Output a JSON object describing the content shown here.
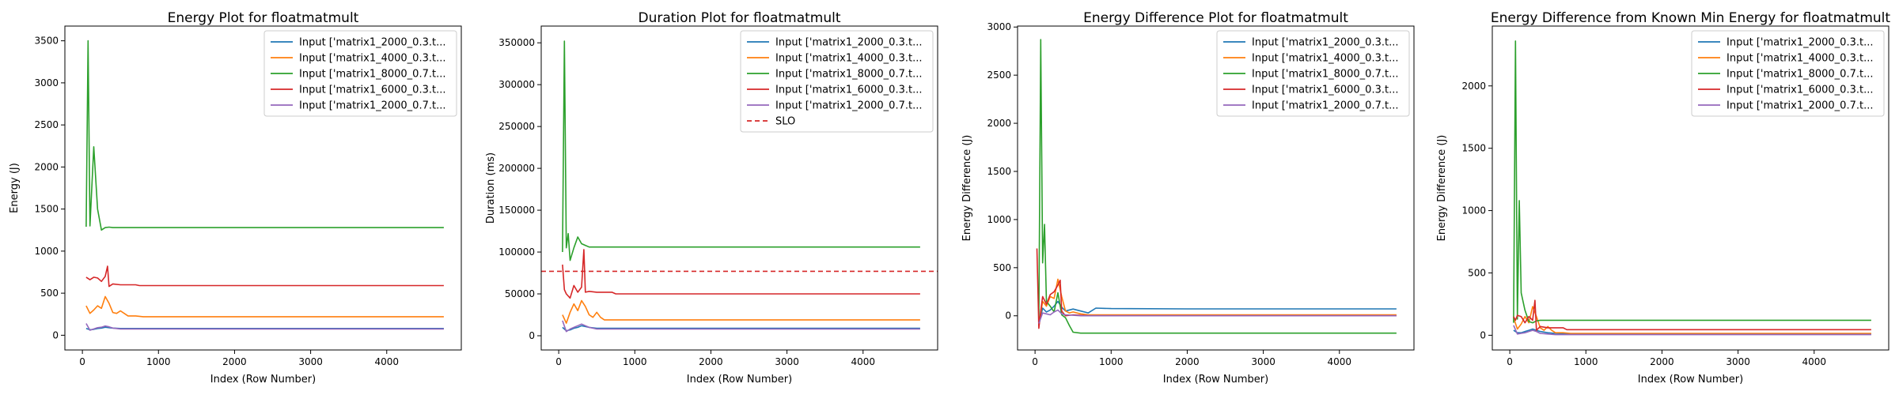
{
  "chart_data": [
    {
      "type": "line",
      "title": "Energy Plot for floatmatmult",
      "xlabel": "Index (Row Number)",
      "ylabel": "Energy (J)",
      "xlim": [
        -230,
        4980
      ],
      "ylim": [
        -175,
        3675
      ],
      "xticks": [
        0,
        1000,
        2000,
        3000,
        4000
      ],
      "xtick_labels": [
        "0",
        "1000",
        "2000",
        "3000",
        "4000"
      ],
      "yticks": [
        0,
        500,
        1000,
        1500,
        2000,
        2500,
        3000,
        3500
      ],
      "ytick_labels": [
        "0",
        "500",
        "1000",
        "1500",
        "2000",
        "2500",
        "3000",
        "3500"
      ],
      "grid": false,
      "legend": "top-right",
      "series": [
        {
          "name": "Input ['matrix1_2000_0.3.t...",
          "color": "#1f77b4",
          "x": [
            50,
            100,
            150,
            200,
            250,
            300,
            350,
            400,
            500,
            600,
            800,
            1000,
            2000,
            3000,
            4000,
            4750
          ],
          "y": [
            80,
            65,
            70,
            80,
            85,
            95,
            90,
            85,
            80,
            80,
            80,
            80,
            80,
            80,
            80,
            80
          ]
        },
        {
          "name": "Input ['matrix1_4000_0.3.t...",
          "color": "#ff7f0e",
          "x": [
            50,
            100,
            150,
            200,
            250,
            300,
            350,
            400,
            450,
            500,
            550,
            600,
            700,
            800,
            1000,
            2000,
            3000,
            4000,
            4750
          ],
          "y": [
            350,
            260,
            300,
            350,
            320,
            460,
            380,
            270,
            260,
            290,
            260,
            230,
            230,
            220,
            220,
            220,
            220,
            220,
            220
          ]
        },
        {
          "name": "Input ['matrix1_8000_0.7.t...",
          "color": "#2ca02c",
          "x": [
            50,
            75,
            100,
            150,
            200,
            250,
            300,
            350,
            400,
            500,
            700,
            1000,
            2000,
            3000,
            4000,
            4750
          ],
          "y": [
            1290,
            3500,
            1300,
            2240,
            1500,
            1250,
            1280,
            1285,
            1280,
            1280,
            1280,
            1280,
            1280,
            1280,
            1280,
            1280
          ]
        },
        {
          "name": "Input ['matrix1_6000_0.3.t...",
          "color": "#d62728",
          "x": [
            50,
            100,
            150,
            200,
            250,
            300,
            330,
            350,
            400,
            500,
            700,
            750,
            1000,
            2000,
            3000,
            4000,
            4750
          ],
          "y": [
            690,
            660,
            690,
            680,
            640,
            700,
            820,
            580,
            610,
            600,
            600,
            590,
            590,
            590,
            590,
            590,
            590
          ]
        },
        {
          "name": "Input ['matrix1_2000_0.7.t...",
          "color": "#9467bd",
          "x": [
            50,
            100,
            150,
            200,
            250,
            300,
            350,
            400,
            500,
            600,
            800,
            1000,
            2000,
            3000,
            4000,
            4750
          ],
          "y": [
            140,
            60,
            75,
            90,
            95,
            110,
            100,
            85,
            75,
            75,
            75,
            75,
            75,
            75,
            75,
            75
          ]
        }
      ]
    },
    {
      "type": "line",
      "title": "Duration Plot for floatmatmult",
      "xlabel": "Index (Row Number)",
      "ylabel": "Duration (ms)",
      "xlim": [
        -230,
        4980
      ],
      "ylim": [
        -17000,
        370000
      ],
      "xticks": [
        0,
        1000,
        2000,
        3000,
        4000
      ],
      "xtick_labels": [
        "0",
        "1000",
        "2000",
        "3000",
        "4000"
      ],
      "yticks": [
        0,
        50000,
        100000,
        150000,
        200000,
        250000,
        300000,
        350000
      ],
      "ytick_labels": [
        "0",
        "50000",
        "100000",
        "150000",
        "200000",
        "250000",
        "300000",
        "350000"
      ],
      "grid": false,
      "legend": "top-right",
      "series": [
        {
          "name": "Input ['matrix1_2000_0.3.t...",
          "color": "#1f77b4",
          "x": [
            50,
            100,
            150,
            200,
            250,
            300,
            350,
            400,
            500,
            600,
            800,
            1000,
            2000,
            3000,
            4000,
            4750
          ],
          "y": [
            10000,
            6000,
            7000,
            9000,
            10000,
            12000,
            11000,
            10000,
            9000,
            9000,
            9000,
            9000,
            9000,
            9000,
            9000,
            9000
          ]
        },
        {
          "name": "Input ['matrix1_4000_0.3.t...",
          "color": "#ff7f0e",
          "x": [
            50,
            100,
            150,
            200,
            250,
            300,
            350,
            400,
            450,
            500,
            550,
            600,
            700,
            800,
            1000,
            2000,
            3000,
            4000,
            4750
          ],
          "y": [
            25000,
            15000,
            28000,
            38000,
            30000,
            42000,
            35000,
            25000,
            22000,
            28000,
            22000,
            19000,
            19000,
            19000,
            19000,
            19000,
            19000,
            19000,
            19000
          ]
        },
        {
          "name": "Input ['matrix1_8000_0.7.t...",
          "color": "#2ca02c",
          "x": [
            50,
            75,
            100,
            125,
            150,
            200,
            250,
            300,
            350,
            400,
            500,
            700,
            1000,
            2000,
            3000,
            4000,
            4750
          ],
          "y": [
            100000,
            352000,
            105000,
            122000,
            90000,
            105000,
            118000,
            110000,
            108000,
            106000,
            106000,
            106000,
            106000,
            106000,
            106000,
            106000,
            106000
          ]
        },
        {
          "name": "Input ['matrix1_6000_0.3.t...",
          "color": "#d62728",
          "x": [
            50,
            75,
            100,
            150,
            200,
            250,
            300,
            330,
            350,
            400,
            500,
            700,
            750,
            1000,
            2000,
            3000,
            4000,
            4750
          ],
          "y": [
            85000,
            55000,
            50000,
            45000,
            60000,
            52000,
            58000,
            103000,
            52000,
            53000,
            52000,
            52000,
            50000,
            50000,
            50000,
            50000,
            50000,
            50000
          ]
        },
        {
          "name": "Input ['matrix1_2000_0.7.t...",
          "color": "#9467bd",
          "x": [
            50,
            100,
            150,
            200,
            250,
            300,
            350,
            400,
            500,
            600,
            800,
            1000,
            2000,
            3000,
            4000,
            4750
          ],
          "y": [
            18000,
            5000,
            8000,
            10000,
            12000,
            14000,
            12000,
            10000,
            8000,
            8000,
            8000,
            8000,
            8000,
            8000,
            8000,
            8000
          ]
        }
      ],
      "hlines": [
        {
          "name": "SLO",
          "y": 77000,
          "color": "#d62728",
          "style": "dashed"
        }
      ]
    },
    {
      "type": "line",
      "title": "Energy Difference Plot for floatmatmult",
      "xlabel": "Index (Row Number)",
      "ylabel": "Energy Difference (J)",
      "xlim": [
        -230,
        4980
      ],
      "ylim": [
        -355,
        3010
      ],
      "xticks": [
        0,
        1000,
        2000,
        3000,
        4000
      ],
      "xtick_labels": [
        "0",
        "1000",
        "2000",
        "3000",
        "4000"
      ],
      "yticks": [
        0,
        500,
        1000,
        1500,
        2000,
        2500,
        3000
      ],
      "ytick_labels": [
        "0",
        "500",
        "1000",
        "1500",
        "2000",
        "2500",
        "3000"
      ],
      "grid": false,
      "legend": "top-right",
      "series": [
        {
          "name": "Input ['matrix1_2000_0.3.t...",
          "color": "#1f77b4",
          "x": [
            50,
            100,
            150,
            200,
            250,
            300,
            350,
            400,
            500,
            600,
            700,
            800,
            1000,
            2000,
            3000,
            4000,
            4750
          ],
          "y": [
            -100,
            80,
            40,
            60,
            100,
            150,
            90,
            50,
            70,
            50,
            30,
            80,
            75,
            72,
            72,
            72,
            72
          ]
        },
        {
          "name": "Input ['matrix1_4000_0.3.t...",
          "color": "#ff7f0e",
          "x": [
            50,
            100,
            150,
            200,
            250,
            300,
            350,
            400,
            450,
            500,
            600,
            700,
            800,
            1000,
            2000,
            3000,
            4000,
            4750
          ],
          "y": [
            -100,
            150,
            100,
            200,
            180,
            380,
            200,
            50,
            30,
            40,
            20,
            10,
            10,
            10,
            10,
            10,
            10,
            10
          ]
        },
        {
          "name": "Input ['matrix1_8000_0.7.t...",
          "color": "#2ca02c",
          "x": [
            50,
            75,
            100,
            125,
            150,
            200,
            250,
            300,
            350,
            400,
            450,
            500,
            600,
            700,
            1000,
            2000,
            3000,
            4000,
            4750
          ],
          "y": [
            -50,
            2870,
            550,
            950,
            150,
            100,
            40,
            240,
            10,
            -20,
            -100,
            -170,
            -180,
            -180,
            -180,
            -180,
            -180,
            -180,
            -180
          ]
        },
        {
          "name": "Input ['matrix1_6000_0.3.t...",
          "color": "#d62728",
          "x": [
            25,
            50,
            75,
            100,
            150,
            200,
            250,
            300,
            330,
            350,
            400,
            500,
            700,
            1000,
            2000,
            3000,
            4000,
            4750
          ],
          "y": [
            700,
            -130,
            50,
            200,
            120,
            220,
            250,
            320,
            370,
            50,
            0,
            10,
            0,
            0,
            0,
            0,
            0,
            0
          ]
        },
        {
          "name": "Input ['matrix1_2000_0.7.t...",
          "color": "#9467bd",
          "x": [
            50,
            100,
            150,
            200,
            250,
            300,
            350,
            400,
            500,
            600,
            800,
            1000,
            2000,
            3000,
            4000,
            4750
          ],
          "y": [
            -80,
            30,
            20,
            10,
            40,
            60,
            20,
            10,
            5,
            0,
            0,
            0,
            0,
            0,
            0,
            0
          ]
        }
      ]
    },
    {
      "type": "line",
      "title": "Energy Difference from Known Min Energy for floatmatmult",
      "xlabel": "Index (Row Number)",
      "ylabel": "Energy Difference (J)",
      "xlim": [
        -230,
        4980
      ],
      "ylim": [
        -118,
        2480
      ],
      "xticks": [
        0,
        1000,
        2000,
        3000,
        4000
      ],
      "xtick_labels": [
        "0",
        "1000",
        "2000",
        "3000",
        "4000"
      ],
      "yticks": [
        0,
        500,
        1000,
        1500,
        2000
      ],
      "ytick_labels": [
        "0",
        "500",
        "1000",
        "1500",
        "2000"
      ],
      "grid": false,
      "legend": "top-right",
      "series": [
        {
          "name": "Input ['matrix1_2000_0.3.t...",
          "color": "#1f77b4",
          "x": [
            50,
            100,
            150,
            200,
            250,
            300,
            350,
            400,
            500,
            600,
            800,
            1000,
            2000,
            3000,
            4000,
            4750
          ],
          "y": [
            40,
            20,
            20,
            30,
            40,
            50,
            40,
            30,
            20,
            15,
            10,
            10,
            10,
            10,
            10,
            10
          ]
        },
        {
          "name": "Input ['matrix1_4000_0.3.t...",
          "color": "#ff7f0e",
          "x": [
            50,
            100,
            150,
            200,
            250,
            300,
            350,
            400,
            450,
            500,
            550,
            600,
            700,
            800,
            1000,
            2000,
            3000,
            4000,
            4750
          ],
          "y": [
            140,
            50,
            90,
            150,
            100,
            230,
            150,
            60,
            40,
            70,
            40,
            20,
            20,
            15,
            15,
            15,
            15,
            15,
            15
          ]
        },
        {
          "name": "Input ['matrix1_8000_0.7.t...",
          "color": "#2ca02c",
          "x": [
            50,
            75,
            100,
            125,
            150,
            200,
            250,
            300,
            350,
            400,
            500,
            700,
            1000,
            2000,
            3000,
            4000,
            4750
          ],
          "y": [
            100,
            2360,
            130,
            1080,
            340,
            200,
            110,
            100,
            115,
            120,
            120,
            120,
            120,
            120,
            120,
            120,
            120
          ]
        },
        {
          "name": "Input ['matrix1_6000_0.3.t...",
          "color": "#d62728",
          "x": [
            50,
            75,
            100,
            150,
            200,
            250,
            300,
            330,
            350,
            400,
            500,
            700,
            750,
            1000,
            2000,
            3000,
            4000,
            4750
          ],
          "y": [
            150,
            120,
            160,
            150,
            100,
            150,
            120,
            280,
            40,
            70,
            60,
            60,
            45,
            45,
            45,
            45,
            45,
            45
          ]
        },
        {
          "name": "Input ['matrix1_2000_0.7.t...",
          "color": "#9467bd",
          "x": [
            50,
            100,
            150,
            200,
            250,
            300,
            350,
            400,
            500,
            600,
            800,
            1000,
            2000,
            3000,
            4000,
            4750
          ],
          "y": [
            80,
            10,
            15,
            20,
            30,
            40,
            30,
            15,
            10,
            5,
            5,
            5,
            5,
            5,
            5,
            5
          ]
        }
      ]
    }
  ]
}
